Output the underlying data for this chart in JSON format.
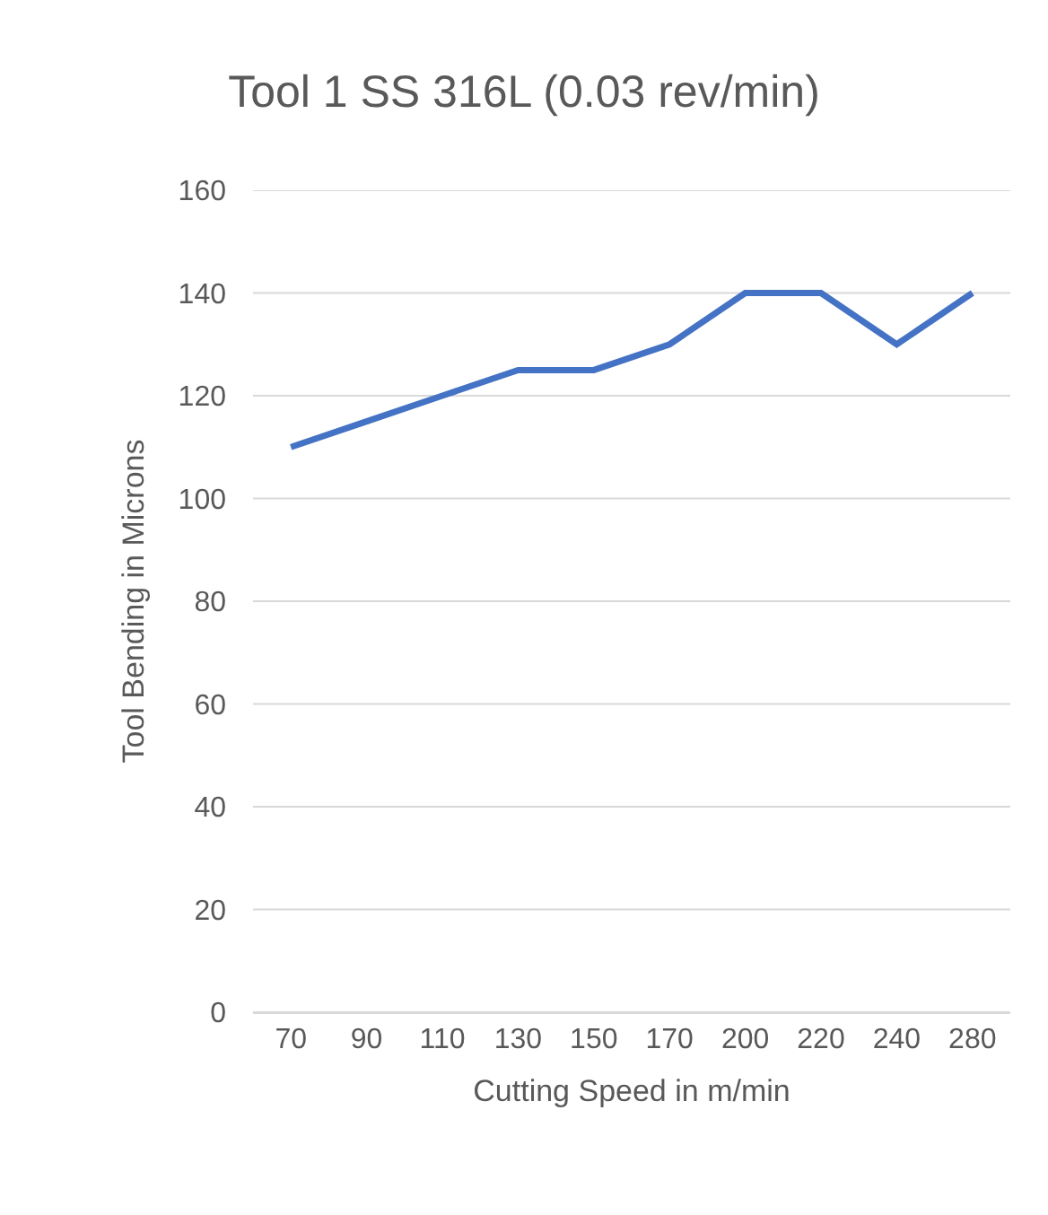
{
  "chart_data": {
    "type": "line",
    "title": "Tool 1 SS 316L (0.03 rev/min)",
    "xlabel": "Cutting Speed in m/min",
    "ylabel": "Tool Bending in Microns",
    "categories": [
      "70",
      "90",
      "110",
      "130",
      "150",
      "170",
      "200",
      "220",
      "240",
      "280"
    ],
    "series": [
      {
        "color": "#4472c4",
        "values": [
          110,
          115,
          120,
          125,
          125,
          130,
          140,
          140,
          130,
          140
        ]
      }
    ],
    "ylim": [
      0,
      160
    ],
    "yticks": [
      0,
      20,
      40,
      60,
      80,
      100,
      120,
      140,
      160
    ],
    "grid": "y",
    "marker": "none",
    "line_style": "solid"
  }
}
